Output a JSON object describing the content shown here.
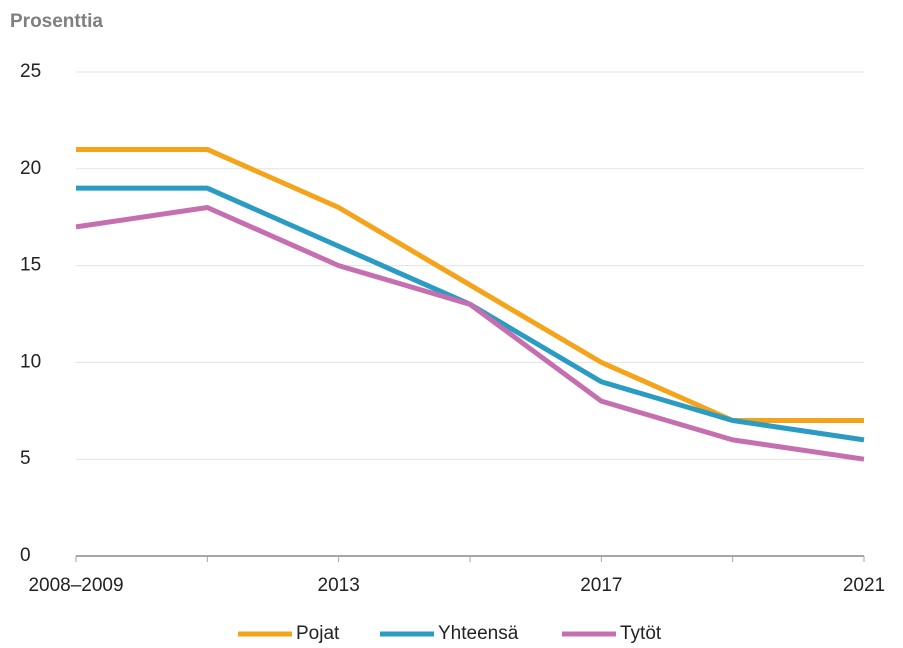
{
  "chart_data": {
    "type": "line",
    "title": "Prosenttia",
    "categories": [
      "2008–2009",
      null,
      "2013",
      null,
      "2017",
      null,
      "2021"
    ],
    "series": [
      {
        "name": "Pojat",
        "color": "#f5a31a",
        "values": [
          21,
          21,
          18,
          14,
          10,
          7,
          7
        ]
      },
      {
        "name": "Yhteensä",
        "color": "#2a9bc3",
        "values": [
          19,
          19,
          16,
          13,
          9,
          7,
          6
        ]
      },
      {
        "name": "Tytöt",
        "color": "#c66fb0",
        "values": [
          17,
          18,
          15,
          13,
          8,
          6,
          5
        ]
      }
    ],
    "ylim": [
      0,
      25
    ],
    "yticks": [
      0,
      5,
      10,
      15,
      20,
      25
    ],
    "grid": true,
    "legend": "bottom"
  }
}
